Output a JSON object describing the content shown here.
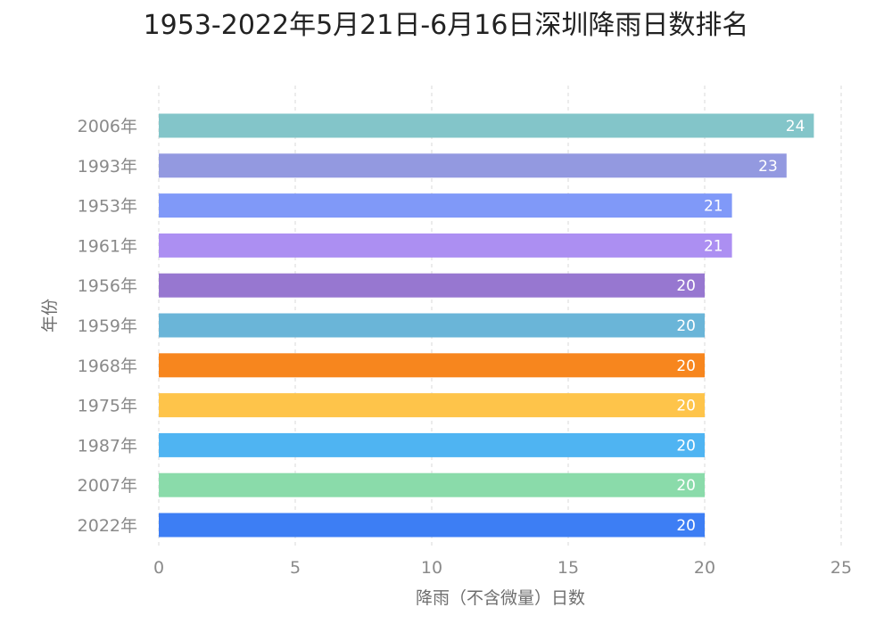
{
  "chart_data": {
    "type": "bar",
    "orientation": "horizontal",
    "title": "1953-2022年5月21日-6月16日深圳降雨日数排名",
    "xlabel": "降雨（不含微量）日数",
    "ylabel": "年份",
    "xlim": [
      0,
      25
    ],
    "xticks": [
      0,
      5,
      10,
      15,
      20,
      25
    ],
    "grid": "vertical-dashed",
    "categories": [
      "2006年",
      "1993年",
      "1953年",
      "1961年",
      "1956年",
      "1959年",
      "1968年",
      "1975年",
      "1987年",
      "2007年",
      "2022年"
    ],
    "values": [
      24,
      23,
      21,
      21,
      20,
      20,
      20,
      20,
      20,
      20,
      20
    ],
    "colors": [
      "#83C5C9",
      "#9399E0",
      "#8099F8",
      "#AC8FF2",
      "#9777D0",
      "#6AB5D8",
      "#F7861E",
      "#FEC44A",
      "#4FB4F2",
      "#8ADBAA",
      "#3D7EF4"
    ]
  }
}
